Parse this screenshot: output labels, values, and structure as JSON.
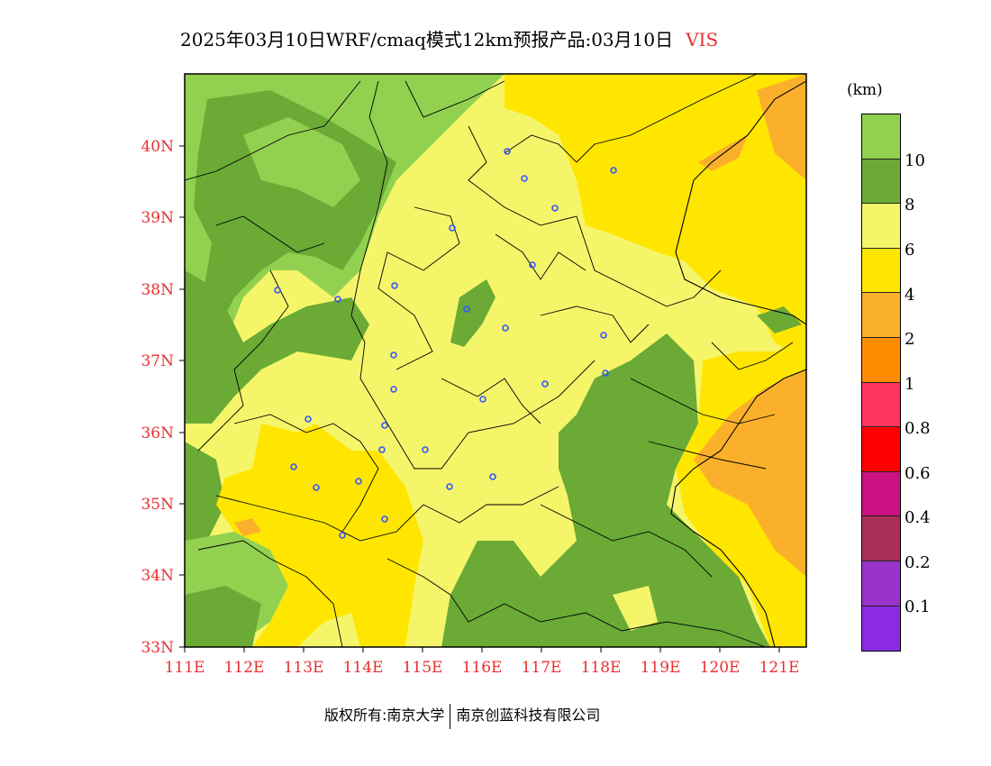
{
  "title": {
    "main": "2025年03月10日WRF/cmaq模式12km预报产品:03月10日",
    "variable": "VIS"
  },
  "map": {
    "lon_range": [
      111,
      121.5
    ],
    "lat_range": [
      33,
      41
    ],
    "lon_ticks": [
      "111E",
      "112E",
      "113E",
      "114E",
      "115E",
      "116E",
      "117E",
      "118E",
      "119E",
      "120E",
      "121E"
    ],
    "lat_ticks": [
      "40N",
      "39N",
      "38N",
      "37N",
      "36N",
      "35N",
      "34N",
      "33N"
    ],
    "stations_marker_color": "#3355ff"
  },
  "legend": {
    "unit": "(km)",
    "colors": [
      "#92d050",
      "#6aaa35",
      "#f5f56a",
      "#ffe600",
      "#fbb02c",
      "#ff8c00",
      "#ff3360",
      "#ff0000",
      "#cc1183",
      "#aa2e5a",
      "#9933cc",
      "#8a2be2"
    ],
    "labels": [
      "10",
      "8",
      "6",
      "4",
      "2",
      "1",
      "0.8",
      "0.6",
      "0.4",
      "0.2",
      "0.1"
    ]
  },
  "footer": {
    "left": "版权所有:南京大学",
    "right": "南京创蓝科技有限公司"
  }
}
